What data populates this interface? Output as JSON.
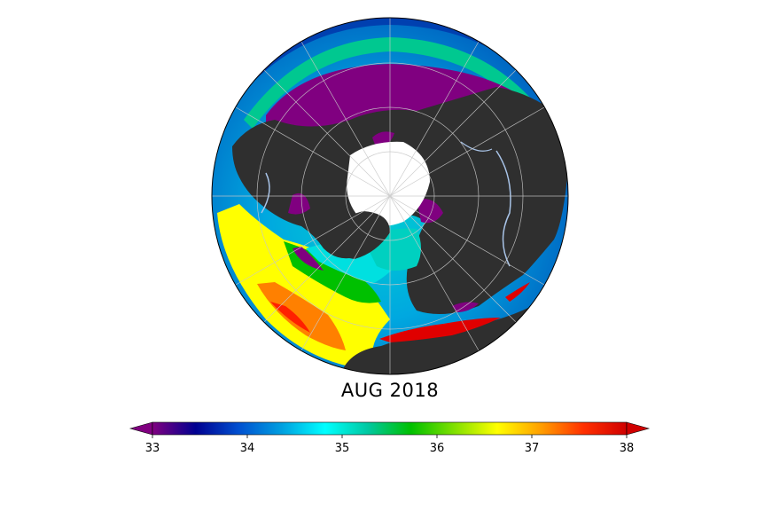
{
  "map": {
    "title": "AUG 2018",
    "projection": "north-polar-orthographic",
    "land_color": "#2f2f2f",
    "ice_color": "#ffffff",
    "graticule_color": "#c8c8c8",
    "river_color": "#a9c4e8"
  },
  "colorbar": {
    "min": 33,
    "max": 38,
    "ticks": [
      "33",
      "34",
      "35",
      "36",
      "37",
      "38"
    ],
    "colormap": "nipy_spectral",
    "extend": "both",
    "stops": [
      "#800080",
      "#000090",
      "#0050d0",
      "#00a0e0",
      "#00ffff",
      "#00c8a0",
      "#00c000",
      "#80e000",
      "#ffff00",
      "#ffa000",
      "#ff3000",
      "#d00000"
    ]
  }
}
